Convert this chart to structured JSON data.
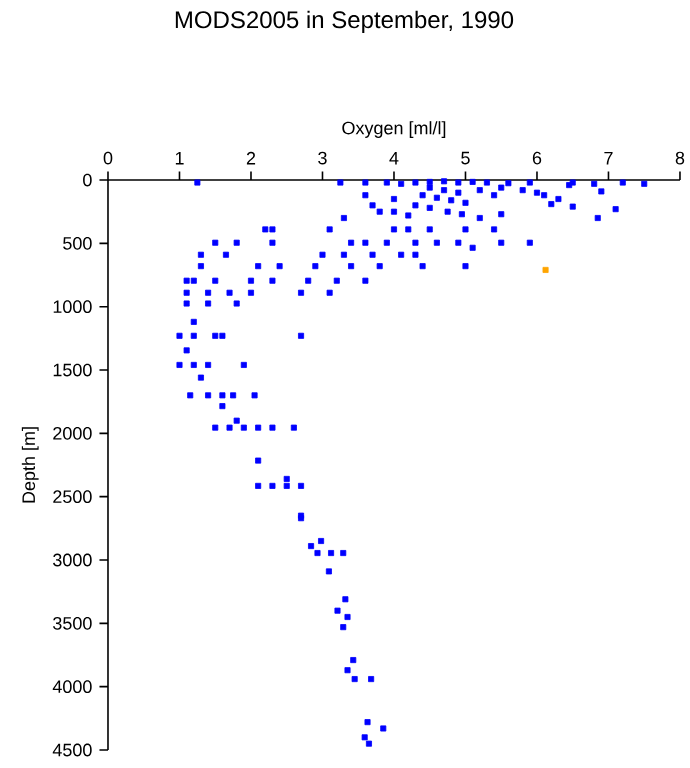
{
  "chart_data": {
    "type": "scatter",
    "title": "MODS2005 in September, 1990",
    "xlabel": "Oxygen [ml/l]",
    "ylabel": "Depth [m]",
    "xlim": [
      0,
      8
    ],
    "xticks": [
      0,
      1,
      2,
      3,
      4,
      5,
      6,
      7,
      8
    ],
    "ylim": [
      4500,
      0
    ],
    "yticks": [
      0,
      500,
      1000,
      1500,
      2000,
      2500,
      3000,
      3500,
      4000,
      4500
    ],
    "marker": "square",
    "grid": false,
    "series": [
      {
        "color": "#0000ff",
        "x": [
          1.25,
          3.25,
          3.6,
          3.9,
          4.1,
          4.3,
          4.5,
          4.7,
          4.9,
          5.1,
          5.3,
          5.6,
          5.9,
          6.5,
          6.8,
          7.2,
          7.5,
          6.45,
          4.5,
          4.7,
          4.9,
          4.4,
          4.6,
          4.8,
          5.0,
          4.3,
          4.5,
          4.75,
          4.95,
          4.2,
          5.2,
          5.4,
          5.5,
          5.8,
          6.0,
          6.1,
          6.3,
          6.2,
          6.9,
          7.1,
          6.85,
          3.6,
          3.8,
          4.0,
          3.3,
          5.2,
          5.5,
          6.5,
          3.7,
          4.0,
          2.2,
          2.3,
          3.1,
          4.0,
          4.2,
          4.5,
          5.0,
          5.4,
          1.5,
          1.8,
          2.3,
          3.4,
          3.6,
          3.9,
          4.3,
          4.6,
          4.9,
          5.5,
          5.9,
          5.1,
          1.3,
          1.65,
          3.0,
          3.3,
          3.7,
          4.1,
          4.3,
          1.3,
          2.1,
          2.4,
          2.9,
          3.4,
          3.8,
          4.4,
          5.0,
          1.1,
          1.2,
          1.5,
          2.0,
          2.3,
          2.8,
          3.2,
          3.6,
          1.1,
          1.4,
          1.7,
          2.0,
          2.7,
          3.1,
          1.1,
          1.4,
          1.8,
          1.2,
          1.0,
          1.2,
          1.5,
          1.6,
          2.7,
          1.1,
          1.0,
          1.2,
          1.4,
          1.9,
          1.3,
          1.15,
          1.4,
          1.6,
          1.75,
          2.05,
          1.6,
          1.8,
          1.5,
          1.7,
          1.9,
          2.1,
          2.3,
          2.6,
          2.1,
          2.1,
          2.3,
          2.5,
          2.7,
          2.5,
          2.7,
          2.7,
          2.84,
          2.93,
          3.12,
          2.98,
          3.09,
          3.29,
          3.32,
          3.21,
          3.35,
          3.29,
          3.43,
          3.35,
          3.45,
          3.68,
          3.63,
          3.85,
          3.59,
          3.65
        ],
        "values": [
          20,
          20,
          20,
          20,
          30,
          20,
          15,
          10,
          20,
          15,
          20,
          25,
          20,
          20,
          30,
          20,
          30,
          40,
          60,
          80,
          100,
          120,
          140,
          160,
          180,
          200,
          220,
          250,
          270,
          280,
          80,
          120,
          60,
          80,
          100,
          120,
          150,
          190,
          90,
          230,
          300,
          120,
          250,
          250,
          300,
          300,
          270,
          210,
          200,
          150,
          390,
          390,
          390,
          390,
          390,
          390,
          390,
          390,
          495,
          495,
          495,
          495,
          495,
          495,
          495,
          495,
          495,
          495,
          495,
          535,
          590,
          590,
          590,
          590,
          590,
          590,
          590,
          680,
          680,
          680,
          680,
          680,
          680,
          680,
          680,
          795,
          795,
          795,
          795,
          795,
          795,
          795,
          795,
          890,
          890,
          890,
          890,
          890,
          890,
          975,
          975,
          975,
          1120,
          1230,
          1230,
          1230,
          1230,
          1230,
          1345,
          1460,
          1460,
          1460,
          1460,
          1560,
          1700,
          1700,
          1700,
          1700,
          1700,
          1785,
          1900,
          1955,
          1955,
          1955,
          1955,
          1955,
          1955,
          2215,
          2415,
          2415,
          2415,
          2415,
          2360,
          2650,
          2670,
          2890,
          2945,
          2945,
          2850,
          3090,
          2945,
          3310,
          3400,
          3450,
          3530,
          3790,
          3870,
          3940,
          3940,
          4280,
          4330,
          4400,
          4450
        ]
      },
      {
        "color": "#ffa500",
        "x": [
          6.12
        ],
        "values": [
          710
        ]
      }
    ]
  }
}
